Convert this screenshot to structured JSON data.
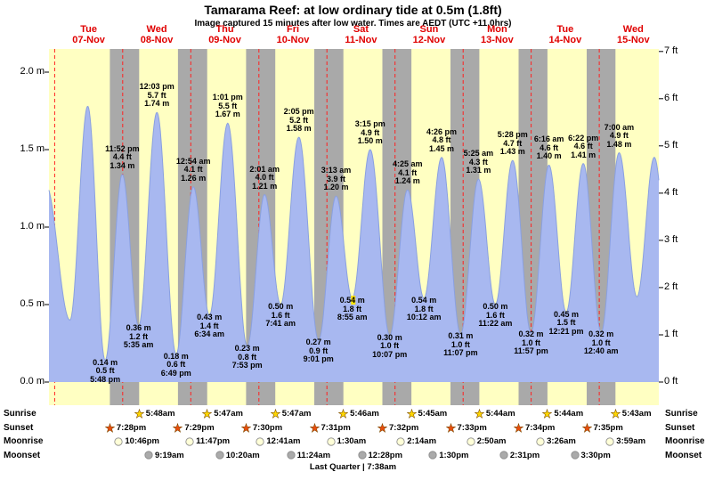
{
  "chart_data": {
    "type": "area",
    "title": "Tamarama Reef: at low  ordinary tide at 0.5m (1.8ft)",
    "subtitle": "Image captured 15 minutes after low water. Times are AEDT (UTC +11.0hrs)",
    "time_axis": {
      "origin": "hours since 00:00 Tue 07-Nov",
      "window": [
        -2,
        213
      ],
      "days": [
        {
          "name": "Tue",
          "date": "07-Nov"
        },
        {
          "name": "Wed",
          "date": "08-Nov"
        },
        {
          "name": "Thu",
          "date": "09-Nov"
        },
        {
          "name": "Fri",
          "date": "10-Nov"
        },
        {
          "name": "Sat",
          "date": "11-Nov"
        },
        {
          "name": "Sun",
          "date": "12-Nov"
        },
        {
          "name": "Mon",
          "date": "13-Nov"
        },
        {
          "name": "Tue",
          "date": "14-Nov"
        },
        {
          "name": "Wed",
          "date": "15-Nov"
        }
      ]
    },
    "y_axis": {
      "left_unit": "m",
      "right_unit": "ft",
      "left_ticks": [
        {
          "v": 0.0,
          "label": "0.0 m"
        },
        {
          "v": 0.5,
          "label": "0.5 m"
        },
        {
          "v": 1.0,
          "label": "1.0 m"
        },
        {
          "v": 1.5,
          "label": "1.5 m"
        },
        {
          "v": 2.0,
          "label": "2.0 m"
        }
      ],
      "right_ticks": [
        {
          "ft": 0,
          "label": "0 ft"
        },
        {
          "ft": 1,
          "label": "1 ft"
        },
        {
          "ft": 2,
          "label": "2 ft"
        },
        {
          "ft": 3,
          "label": "3 ft"
        },
        {
          "ft": 4,
          "label": "4 ft"
        },
        {
          "ft": 5,
          "label": "5 ft"
        },
        {
          "ft": 6,
          "label": "6 ft"
        },
        {
          "ft": 7,
          "label": "7 ft"
        }
      ]
    },
    "tide_events": [
      {
        "t": -3.2,
        "h": 1.28,
        "type": "high",
        "labeled": false
      },
      {
        "t": 5.4,
        "h": 0.4,
        "type": "low",
        "labeled": false
      },
      {
        "t": 11.67,
        "h": 1.78,
        "type": "high",
        "labeled": false
      },
      {
        "t": 17.8,
        "h": 0.14,
        "type": "low",
        "label": [
          "0.14 m",
          "0.5 ft",
          "5:48 pm"
        ]
      },
      {
        "t": 23.87,
        "h": 1.34,
        "type": "high",
        "label": [
          "11:52 pm",
          "4.4 ft",
          "1.34 m"
        ]
      },
      {
        "t": 29.58,
        "h": 0.36,
        "type": "low",
        "label": [
          "0.36 m",
          "1.2 ft",
          "5:35 am"
        ]
      },
      {
        "t": 36.05,
        "h": 1.74,
        "type": "high",
        "label": [
          "12:03 pm",
          "5.7 ft",
          "1.74 m"
        ]
      },
      {
        "t": 42.82,
        "h": 0.18,
        "type": "low",
        "label": [
          "0.18 m",
          "0.6 ft",
          "6:49 pm"
        ]
      },
      {
        "t": 48.9,
        "h": 1.26,
        "type": "high",
        "label": [
          "12:54 am",
          "4.1 ft",
          "1.26 m"
        ]
      },
      {
        "t": 54.57,
        "h": 0.43,
        "type": "low",
        "label": [
          "0.43 m",
          "1.4 ft",
          "6:34 am"
        ]
      },
      {
        "t": 61.02,
        "h": 1.67,
        "type": "high",
        "label": [
          "1:01 pm",
          "5.5 ft",
          "1.67 m"
        ]
      },
      {
        "t": 67.88,
        "h": 0.23,
        "type": "low",
        "label": [
          "0.23 m",
          "0.8 ft",
          "7:53 pm"
        ]
      },
      {
        "t": 74.02,
        "h": 1.21,
        "type": "high",
        "label": [
          "2:01 am",
          "4.0 ft",
          "1.21 m"
        ]
      },
      {
        "t": 79.68,
        "h": 0.5,
        "type": "low",
        "label": [
          "0.50 m",
          "1.6 ft",
          "7:41 am"
        ]
      },
      {
        "t": 86.08,
        "h": 1.58,
        "type": "high",
        "label": [
          "2:05 pm",
          "5.2 ft",
          "1.58 m"
        ]
      },
      {
        "t": 93.02,
        "h": 0.27,
        "type": "low",
        "label": [
          "0.27 m",
          "0.9 ft",
          "9:01 pm"
        ]
      },
      {
        "t": 99.22,
        "h": 1.2,
        "type": "high",
        "label": [
          "3:13 am",
          "3.9 ft",
          "1.20 m"
        ]
      },
      {
        "t": 104.92,
        "h": 0.54,
        "type": "low",
        "label": [
          "0.54 m",
          "1.8 ft",
          "8:55 am"
        ],
        "highlight": {
          "line": 0,
          "start": 3,
          "len": 1
        }
      },
      {
        "t": 111.25,
        "h": 1.5,
        "type": "high",
        "label": [
          "3:15 pm",
          "4.9 ft",
          "1.50 m"
        ]
      },
      {
        "t": 118.12,
        "h": 0.3,
        "type": "low",
        "label": [
          "0.30 m",
          "1.0 ft",
          "10:07 pm"
        ]
      },
      {
        "t": 124.42,
        "h": 1.24,
        "type": "high",
        "label": [
          "4:25 am",
          "4.1 ft",
          "1.24 m"
        ]
      },
      {
        "t": 130.2,
        "h": 0.54,
        "type": "low",
        "label": [
          "0.54 m",
          "1.8 ft",
          "10:12 am"
        ]
      },
      {
        "t": 136.43,
        "h": 1.45,
        "type": "high",
        "label": [
          "4:26 pm",
          "4.8 ft",
          "1.45 m"
        ]
      },
      {
        "t": 143.12,
        "h": 0.31,
        "type": "low",
        "label": [
          "0.31 m",
          "1.0 ft",
          "11:07 pm"
        ]
      },
      {
        "t": 149.42,
        "h": 1.31,
        "type": "high",
        "label": [
          "5:25 am",
          "4.3 ft",
          "1.31 m"
        ]
      },
      {
        "t": 155.37,
        "h": 0.5,
        "type": "low",
        "label": [
          "0.50 m",
          "1.6 ft",
          "11:22 am"
        ]
      },
      {
        "t": 161.47,
        "h": 1.43,
        "type": "high",
        "label": [
          "5:28 pm",
          "4.7 ft",
          "1.43 m"
        ]
      },
      {
        "t": 167.95,
        "h": 0.32,
        "type": "low",
        "label": [
          "0.32 m",
          "1.0 ft",
          "11:57 pm"
        ]
      },
      {
        "t": 174.27,
        "h": 1.4,
        "type": "high",
        "label": [
          "6:16 am",
          "4.6 ft",
          "1.40 m"
        ]
      },
      {
        "t": 180.35,
        "h": 0.45,
        "type": "low",
        "label": [
          "0.45 m",
          "1.5 ft",
          "12:21 pm"
        ]
      },
      {
        "t": 186.37,
        "h": 1.41,
        "type": "high",
        "label": [
          "6:22 pm",
          "4.6 ft",
          "1.41 m"
        ]
      },
      {
        "t": 192.67,
        "h": 0.32,
        "type": "low",
        "label": [
          "0.32 m",
          "1.0 ft",
          "12:40 am"
        ]
      },
      {
        "t": 199.0,
        "h": 1.48,
        "type": "high",
        "label": [
          "7:00 am",
          "4.9 ft",
          "1.48 m"
        ]
      },
      {
        "t": 205.3,
        "h": 0.55,
        "type": "low",
        "labeled": false
      },
      {
        "t": 211.4,
        "h": 1.45,
        "type": "high",
        "labeled": false
      },
      {
        "t": 217.6,
        "h": 0.5,
        "type": "low",
        "labeled": false
      }
    ]
  },
  "colors": {
    "day_band": "#ffffc2",
    "night_band": "#a9a9a9",
    "tide_fill": "#a8b8f0",
    "tide_stroke": "#8aa0e0",
    "day_label": "#e00000",
    "midnight_line": "#ff2020",
    "highlight": "#ffe400",
    "sunrise_star": "#ffd700",
    "sunset_star": "#e84e0e",
    "moonrise_disc": "#ffffd8",
    "moonset_disc": "#aaaaaa"
  },
  "astro": {
    "rows": [
      {
        "key": "sunrise",
        "label": "Sunrise",
        "icon": "star",
        "color_key": "sunrise_star",
        "markers": [
          {
            "t": 29.8,
            "time": "5:48am"
          },
          {
            "t": 53.78,
            "time": "5:47am"
          },
          {
            "t": 77.78,
            "time": "5:47am"
          },
          {
            "t": 101.77,
            "time": "5:46am"
          },
          {
            "t": 125.75,
            "time": "5:45am"
          },
          {
            "t": 149.73,
            "time": "5:44am"
          },
          {
            "t": 173.73,
            "time": "5:44am"
          },
          {
            "t": 197.72,
            "time": "5:43am"
          }
        ]
      },
      {
        "key": "sunset",
        "label": "Sunset",
        "icon": "star",
        "color_key": "sunset_star",
        "markers": [
          {
            "t": 19.47,
            "time": "7:28pm"
          },
          {
            "t": 43.48,
            "time": "7:29pm"
          },
          {
            "t": 67.5,
            "time": "7:30pm"
          },
          {
            "t": 91.52,
            "time": "7:31pm"
          },
          {
            "t": 115.53,
            "time": "7:32pm"
          },
          {
            "t": 139.55,
            "time": "7:33pm"
          },
          {
            "t": 163.57,
            "time": "7:34pm"
          },
          {
            "t": 187.58,
            "time": "7:35pm"
          }
        ]
      },
      {
        "key": "moonrise",
        "label": "Moonrise",
        "icon": "disc",
        "color_key": "moonrise_disc",
        "markers": [
          {
            "t": 22.77,
            "time": "10:46pm"
          },
          {
            "t": 47.78,
            "time": "11:47pm"
          },
          {
            "t": 72.68,
            "time": "12:41am"
          },
          {
            "t": 97.5,
            "time": "1:30am"
          },
          {
            "t": 122.23,
            "time": "2:14am"
          },
          {
            "t": 146.83,
            "time": "2:50am"
          },
          {
            "t": 171.43,
            "time": "3:26am"
          },
          {
            "t": 195.98,
            "time": "3:59am"
          }
        ]
      },
      {
        "key": "moonset",
        "label": "Moonset",
        "icon": "disc",
        "color_key": "moonset_disc",
        "markers": [
          {
            "t": 33.32,
            "time": "9:19am"
          },
          {
            "t": 58.33,
            "time": "10:20am"
          },
          {
            "t": 83.4,
            "time": "11:24am"
          },
          {
            "t": 108.47,
            "time": "12:28pm"
          },
          {
            "t": 133.5,
            "time": "1:30pm"
          },
          {
            "t": 158.52,
            "time": "2:31pm"
          },
          {
            "t": 183.5,
            "time": "3:30pm"
          }
        ]
      }
    ],
    "footer": "Last Quarter | 7:38am"
  }
}
